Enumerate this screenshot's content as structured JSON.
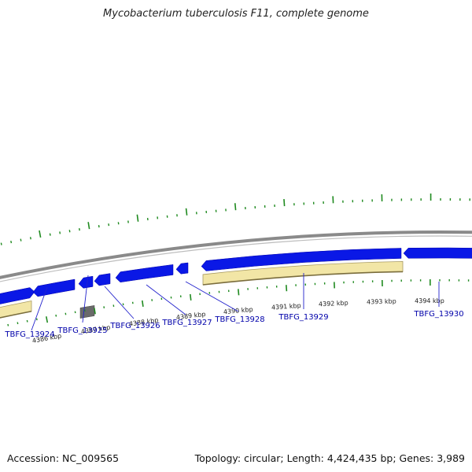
{
  "title": "Mycobacterium tuberculosis F11, complete genome",
  "footer": {
    "accession": "Accession: NC_009565",
    "summary": "Topology: circular; Length: 4,424,435 bp; Genes: 3,989"
  },
  "colors": {
    "backbone": "#8a8a8a",
    "forward_gene": "#0a18e6",
    "gene_gray": "#6a6a6a",
    "feature_band": "#f2e6a6",
    "feature_band_edge": "#a89a62",
    "tick": "#1f8a1f",
    "gene_label": "#0000aa",
    "callout_line": "#2222cc"
  },
  "axis": {
    "tick_labels": [
      "4386 kbp",
      "4387 kbp",
      "4388 kbp",
      "4389 kbp",
      "4390 kbp",
      "4391 kbp",
      "4392 kbp",
      "4393 kbp",
      "4394 kbp"
    ]
  },
  "genes": [
    {
      "id": "TBFG_13924",
      "strand": "reverse"
    },
    {
      "id": "TBFG_13925",
      "strand": "forward"
    },
    {
      "id": "TBFG_13926",
      "strand": "reverse"
    },
    {
      "id": "TBFG_13927",
      "strand": "reverse"
    },
    {
      "id": "TBFG_13928",
      "strand": "reverse"
    },
    {
      "id": "TBFG_13929",
      "strand": "reverse"
    },
    {
      "id": "TBFG_13930",
      "strand": "reverse"
    }
  ]
}
